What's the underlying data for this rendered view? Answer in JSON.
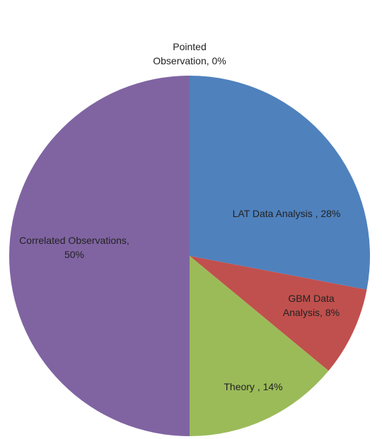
{
  "chart_data": {
    "type": "pie",
    "values": [
      0,
      28,
      8,
      14,
      50
    ],
    "value_labels": [
      "Pointed Observation, 0%",
      "LAT Data Analysis , 28%",
      "GBM Data Analysis, 8%",
      "Theory , 14%",
      "Correlated Observations, 50%"
    ],
    "colors": [
      "#4bacc6",
      "#4f81bd",
      "#c0504d",
      "#9bbb59",
      "#8064a2"
    ]
  }
}
